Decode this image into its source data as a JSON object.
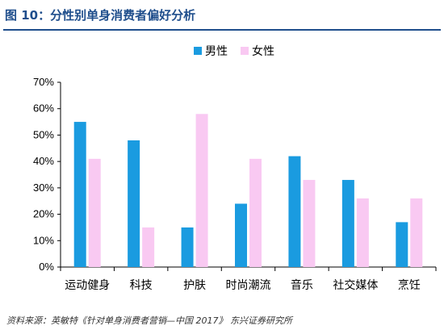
{
  "figure": {
    "title": "图 10：分性别单身消费者偏好分析",
    "source": "资料来源：英敏特《针对单身消费者营销—中国 2017》  东兴证券研究所"
  },
  "chart_data": {
    "type": "bar",
    "title": "",
    "xlabel": "",
    "ylabel": "",
    "categories": [
      "运动健身",
      "科技",
      "护肤",
      "时尚潮流",
      "音乐",
      "社交媒体",
      "烹饪"
    ],
    "series": [
      {
        "name": "男性",
        "color": "#1a9be0",
        "values": [
          55,
          48,
          15,
          24,
          42,
          33,
          17
        ]
      },
      {
        "name": "女性",
        "color": "#f9c9f2",
        "values": [
          41,
          15,
          58,
          41,
          33,
          26,
          26
        ]
      }
    ],
    "ylim": [
      0,
      70
    ],
    "yticks": [
      "0%",
      "10%",
      "20%",
      "30%",
      "40%",
      "50%",
      "60%",
      "70%"
    ],
    "grid": false,
    "legend": "top-center"
  }
}
